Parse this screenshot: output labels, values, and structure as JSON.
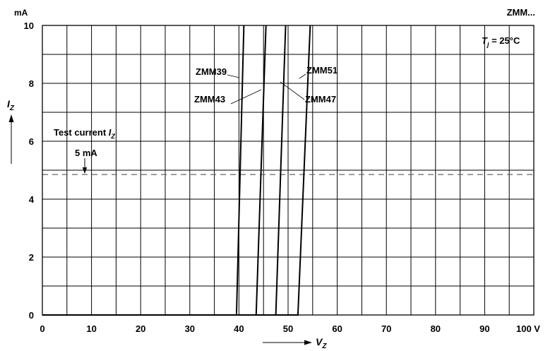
{
  "chart_data": {
    "type": "line",
    "title": "ZMM...",
    "xlabel_symbol": "V",
    "xlabel_subscript": "Z",
    "ylabel_symbol": "I",
    "ylabel_subscript": "Z",
    "x_unit": "V",
    "y_unit": "mA",
    "xlim": [
      0,
      100
    ],
    "ylim": [
      0,
      10
    ],
    "x_ticks": [
      0,
      10,
      20,
      30,
      40,
      50,
      60,
      70,
      80,
      90,
      100
    ],
    "x_tick_labels": [
      "0",
      "10",
      "20",
      "30",
      "40",
      "50",
      "60",
      "70",
      "80",
      "90",
      "100 V"
    ],
    "y_ticks": [
      0,
      2,
      4,
      6,
      8,
      10
    ],
    "y_tick_labels": [
      "0",
      "2",
      "4",
      "6",
      "8",
      "10"
    ],
    "x_gridlines": [
      0,
      5,
      10,
      15,
      20,
      25,
      30,
      35,
      40,
      45,
      50,
      55,
      60,
      65,
      70,
      75,
      80,
      85,
      90,
      95,
      100
    ],
    "y_gridlines": [
      0,
      1,
      2,
      3,
      4,
      5,
      6,
      7,
      8,
      9,
      10
    ],
    "grid": true,
    "temperature_note": {
      "symbol": "T",
      "subscript": "j",
      "value": " = 25°C"
    },
    "test_current": {
      "label": "Test current ",
      "symbol": "I",
      "subscript": "Z",
      "value_label": "5 mA",
      "value": 4.85
    },
    "series": [
      {
        "name": "ZMM39",
        "x": [
          0,
          39.5,
          41.0
        ],
        "y": [
          0,
          0,
          10
        ]
      },
      {
        "name": "ZMM43",
        "x": [
          0,
          43.5,
          45.5
        ],
        "y": [
          0,
          0,
          10
        ]
      },
      {
        "name": "ZMM47",
        "x": [
          0,
          47.5,
          49.5
        ],
        "y": [
          0,
          0,
          10
        ]
      },
      {
        "name": "ZMM51",
        "x": [
          0,
          52.0,
          54.5
        ],
        "y": [
          0,
          0,
          10
        ]
      }
    ]
  }
}
